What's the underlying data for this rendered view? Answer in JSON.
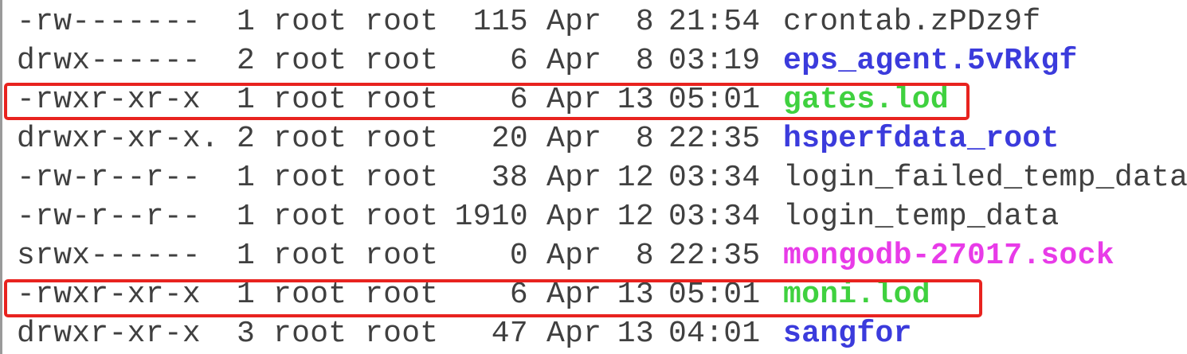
{
  "terminal": {
    "rows": [
      {
        "perm": "-rw-------",
        "links": "1",
        "owner": "root",
        "group": "root",
        "size": "115",
        "month": "Apr",
        "day": "8",
        "time": "21:54",
        "name": "crontab.zPDz9f",
        "name_color": "#404040"
      },
      {
        "perm": "drwx------",
        "links": "2",
        "owner": "root",
        "group": "root",
        "size": "6",
        "month": "Apr",
        "day": "8",
        "time": "03:19",
        "name": "eps_agent.5vRkgf",
        "name_color": "#3b3bdc"
      },
      {
        "perm": "-rwxr-xr-x",
        "links": "1",
        "owner": "root",
        "group": "root",
        "size": "6",
        "month": "Apr",
        "day": "13",
        "time": "05:01",
        "name": "gates.lod",
        "name_color": "#3fd13f"
      },
      {
        "perm": "drwxr-xr-x.",
        "links": "2",
        "owner": "root",
        "group": "root",
        "size": "20",
        "month": "Apr",
        "day": "8",
        "time": "22:35",
        "name": "hsperfdata_root",
        "name_color": "#3b3bdc"
      },
      {
        "perm": "-rw-r--r--",
        "links": "1",
        "owner": "root",
        "group": "root",
        "size": "38",
        "month": "Apr",
        "day": "12",
        "time": "03:34",
        "name": "login_failed_temp_data",
        "name_color": "#404040"
      },
      {
        "perm": "-rw-r--r--",
        "links": "1",
        "owner": "root",
        "group": "root",
        "size": "1910",
        "month": "Apr",
        "day": "12",
        "time": "03:34",
        "name": "login_temp_data",
        "name_color": "#404040"
      },
      {
        "perm": "srwx------",
        "links": "1",
        "owner": "root",
        "group": "root",
        "size": "0",
        "month": "Apr",
        "day": "8",
        "time": "22:35",
        "name": "mongodb-27017.sock",
        "name_color": "#e83be8"
      },
      {
        "perm": "-rwxr-xr-x",
        "links": "1",
        "owner": "root",
        "group": "root",
        "size": "6",
        "month": "Apr",
        "day": "13",
        "time": "05:01",
        "name": "moni.lod",
        "name_color": "#3fd13f"
      },
      {
        "perm": "drwxr-xr-x",
        "links": "3",
        "owner": "root",
        "group": "root",
        "size": "47",
        "month": "Apr",
        "day": "13",
        "time": "04:01",
        "name": "sangfor",
        "name_color": "#3b3bdc"
      }
    ],
    "highlight_color": "#e8231f",
    "highlighted_rows": [
      2,
      7
    ]
  }
}
